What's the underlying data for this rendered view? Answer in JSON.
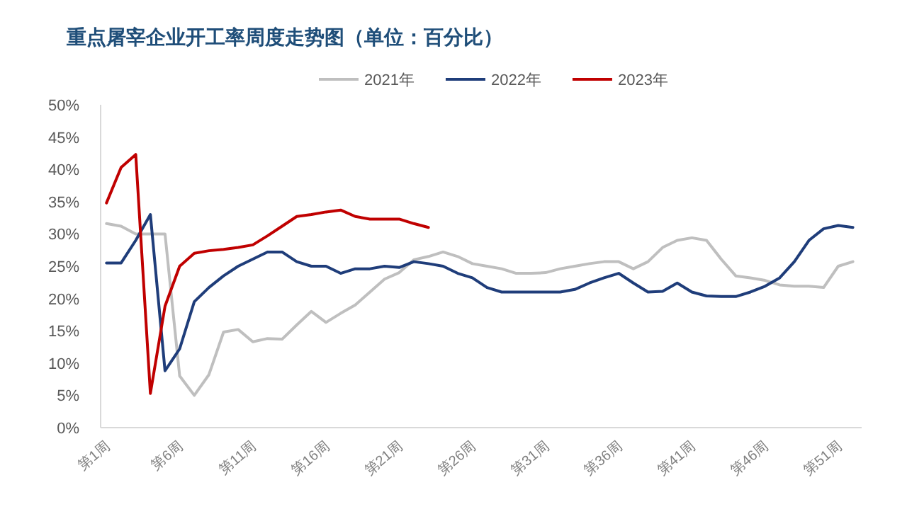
{
  "chart_data": {
    "type": "line",
    "title": "重点屠宰企业开工率周度走势图（单位：百分比）",
    "categories": [
      "第1周",
      null,
      null,
      null,
      null,
      "第6周",
      null,
      null,
      null,
      null,
      "第11周",
      null,
      null,
      null,
      null,
      "第16周",
      null,
      null,
      null,
      null,
      "第21周",
      null,
      null,
      null,
      null,
      "第26周",
      null,
      null,
      null,
      null,
      "第31周",
      null,
      null,
      null,
      null,
      "第36周",
      null,
      null,
      null,
      null,
      "第41周",
      null,
      null,
      null,
      null,
      "第46周",
      null,
      null,
      null,
      null,
      "第51周",
      null
    ],
    "series": [
      {
        "name": "2021年",
        "color": "#bfbfbf",
        "values": [
          31.6,
          31.2,
          30,
          30,
          30,
          8,
          5,
          8.2,
          14.8,
          15.2,
          13.3,
          13.8,
          13.7,
          15.9,
          18,
          16.3,
          17.7,
          19,
          21,
          23,
          24,
          26,
          26.5,
          27.2,
          26.5,
          25.4,
          25,
          24.6,
          23.9,
          23.9,
          24,
          24.6,
          25,
          25.4,
          25.7,
          25.7,
          24.6,
          25.7,
          27.9,
          29,
          29.4,
          29,
          26.1,
          23.5,
          23.2,
          22.8,
          22.1,
          21.9,
          21.9,
          21.7,
          25,
          25.7
        ]
      },
      {
        "name": "2022年",
        "color": "#1f3d7a",
        "values": [
          25.5,
          25.5,
          29,
          33,
          8.8,
          12.2,
          19.5,
          21.7,
          23.5,
          25,
          26.1,
          27.2,
          27.2,
          25.7,
          25,
          25,
          23.9,
          24.6,
          24.6,
          25,
          24.8,
          25.7,
          25.4,
          25,
          23.9,
          23.2,
          21.7,
          21,
          21,
          21,
          21,
          21,
          21.4,
          22.4,
          23.2,
          23.9,
          22.4,
          21,
          21.1,
          22.4,
          21,
          20.4,
          20.3,
          20.3,
          21,
          21.9,
          23.2,
          25.7,
          29,
          30.8,
          31.3,
          31
        ]
      },
      {
        "name": "2023年",
        "color": "#c00000",
        "values": [
          34.8,
          40.3,
          42.3,
          5.3,
          18.8,
          25,
          27,
          27.4,
          27.6,
          27.9,
          28.3,
          29.7,
          31.2,
          32.7,
          33,
          33.4,
          33.7,
          32.7,
          32.3,
          32.3,
          32.3,
          31.6,
          31,
          null,
          null,
          null,
          null,
          null,
          null,
          null,
          null,
          null,
          null,
          null,
          null,
          null,
          null,
          null,
          null,
          null,
          null,
          null,
          null,
          null,
          null,
          null,
          null,
          null,
          null,
          null,
          null,
          null
        ]
      }
    ],
    "ylim": [
      0,
      50
    ],
    "yticks": [
      {
        "value": 0,
        "label": "0%"
      },
      {
        "value": 5,
        "label": "5%"
      },
      {
        "value": 10,
        "label": "10%"
      },
      {
        "value": 15,
        "label": "15%"
      },
      {
        "value": 20,
        "label": "20%"
      },
      {
        "value": 25,
        "label": "25%"
      },
      {
        "value": 30,
        "label": "30%"
      },
      {
        "value": 35,
        "label": "35%"
      },
      {
        "value": 40,
        "label": "40%"
      },
      {
        "value": 45,
        "label": "45%"
      },
      {
        "value": 50,
        "label": "50%"
      }
    ],
    "legend": "top",
    "grid": false,
    "marker": "none",
    "line_style": "solid"
  }
}
